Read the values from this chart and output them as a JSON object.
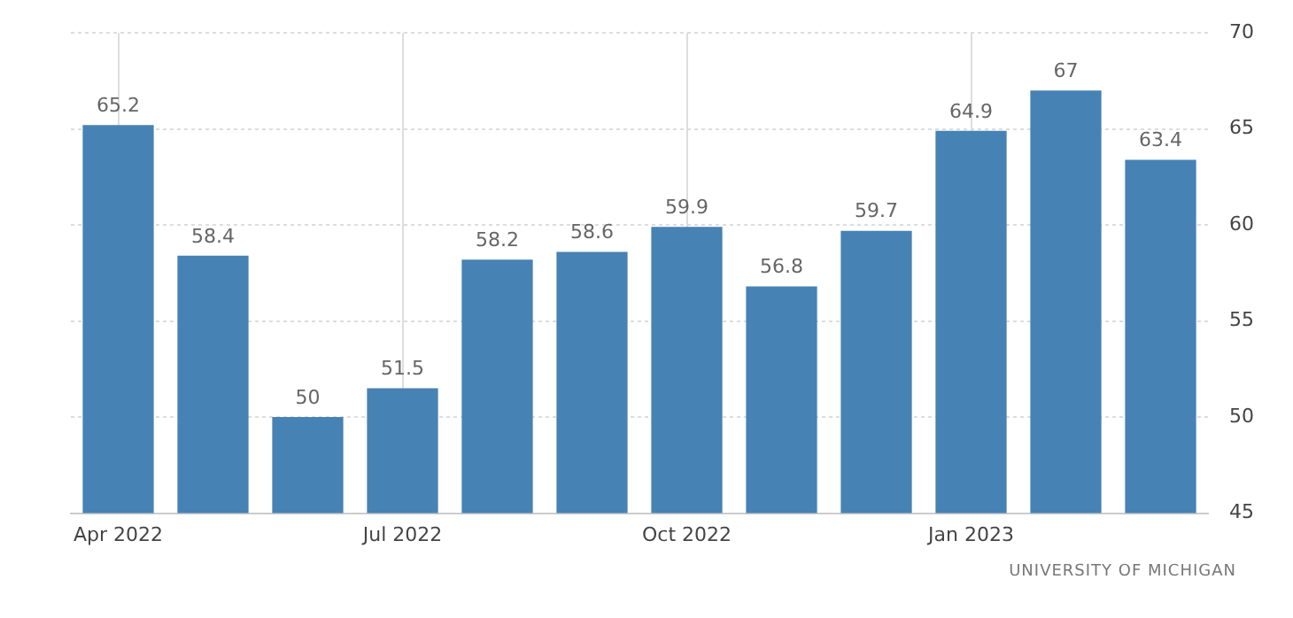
{
  "chart_data": {
    "type": "bar",
    "categories": [
      "Apr 2022",
      null,
      null,
      "Jul 2022",
      null,
      null,
      "Oct 2022",
      null,
      null,
      "Jan 2023",
      null,
      null
    ],
    "values": [
      65.2,
      58.4,
      50,
      51.5,
      58.2,
      58.6,
      59.9,
      56.8,
      59.7,
      64.9,
      67,
      63.4
    ],
    "color": "#4682b4",
    "ylim": [
      45,
      70
    ],
    "yticks": [
      45,
      50,
      55,
      60,
      65,
      70
    ],
    "grid": true,
    "legend": false,
    "data_labels": true,
    "annotations": [
      "UNIVERSITY OF MICHIGAN"
    ]
  }
}
